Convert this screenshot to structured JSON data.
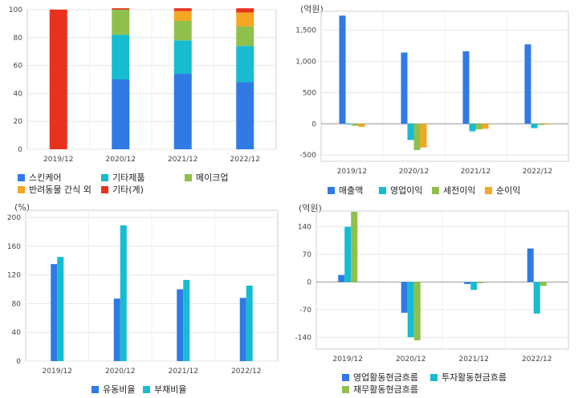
{
  "chart_data": [
    {
      "id": "revenue-mix",
      "type": "bar",
      "stacked": true,
      "categories": [
        "2019/12",
        "2020/12",
        "2021/12",
        "2022/12"
      ],
      "ylim": [
        0,
        100
      ],
      "yticks": [
        0,
        20,
        40,
        60,
        80,
        100
      ],
      "unit": "",
      "series": [
        {
          "name": "스킨케어",
          "color": "#2f7ae5",
          "values": [
            0,
            50,
            54,
            48
          ]
        },
        {
          "name": "기타제품",
          "color": "#17bcd0",
          "values": [
            0,
            32,
            24,
            26
          ]
        },
        {
          "name": "메이크업",
          "color": "#8fc04c",
          "values": [
            0,
            18,
            14,
            14
          ]
        },
        {
          "name": "반려동물 간식 외",
          "color": "#f5a623",
          "values": [
            0,
            0,
            7,
            10
          ]
        },
        {
          "name": "기타(계)",
          "color": "#e8321e",
          "values": [
            100,
            1,
            2,
            3
          ]
        }
      ],
      "grid": true,
      "legend": "bottom"
    },
    {
      "id": "income",
      "type": "bar",
      "categories": [
        "2019/12",
        "2020/12",
        "2021/12",
        "2022/12"
      ],
      "ylim": [
        -600,
        1800
      ],
      "yticks": [
        -500,
        0,
        500,
        1000,
        1500
      ],
      "ytick_labels": [
        "-500",
        "0",
        "500",
        "1,000",
        "1,500"
      ],
      "unit": "(억원)",
      "series": [
        {
          "name": "매출액",
          "color": "#2f7ae5",
          "values": [
            1730,
            1140,
            1160,
            1270
          ]
        },
        {
          "name": "영업이익",
          "color": "#17bcd0",
          "values": [
            -10,
            -260,
            -120,
            -70
          ]
        },
        {
          "name": "세전이익",
          "color": "#8fc04c",
          "values": [
            -30,
            -420,
            -90,
            -20
          ]
        },
        {
          "name": "순이익",
          "color": "#f5a623",
          "values": [
            -50,
            -380,
            -80,
            -10
          ]
        }
      ],
      "grid": true,
      "legend": "bottom"
    },
    {
      "id": "ratios",
      "type": "bar",
      "categories": [
        "2019/12",
        "2020/12",
        "2021/12",
        "2022/12"
      ],
      "ylim": [
        0,
        210
      ],
      "yticks": [
        0,
        40,
        80,
        120,
        160,
        200
      ],
      "unit": "(%)",
      "series": [
        {
          "name": "유동비율",
          "color": "#2f7ae5",
          "values": [
            135,
            87,
            100,
            88
          ]
        },
        {
          "name": "부채비율",
          "color": "#17bcd0",
          "values": [
            145,
            189,
            113,
            105
          ]
        }
      ],
      "grid": true,
      "legend": "bottom"
    },
    {
      "id": "cashflow",
      "type": "bar",
      "categories": [
        "2019/12",
        "2020/12",
        "2021/12",
        "2022/12"
      ],
      "ylim": [
        -170,
        180
      ],
      "yticks": [
        -140,
        -70,
        0,
        70,
        140
      ],
      "unit": "(억원)",
      "series": [
        {
          "name": "영업활동현금흐름",
          "color": "#2f7ae5",
          "values": [
            18,
            -78,
            -5,
            85
          ]
        },
        {
          "name": "투자활동현금흐름",
          "color": "#17bcd0",
          "values": [
            140,
            -140,
            -20,
            -80
          ]
        },
        {
          "name": "재무활동현금흐름",
          "color": "#8fc04c",
          "values": [
            178,
            -148,
            -3,
            -10
          ]
        }
      ],
      "grid": true,
      "legend": "bottom"
    }
  ]
}
